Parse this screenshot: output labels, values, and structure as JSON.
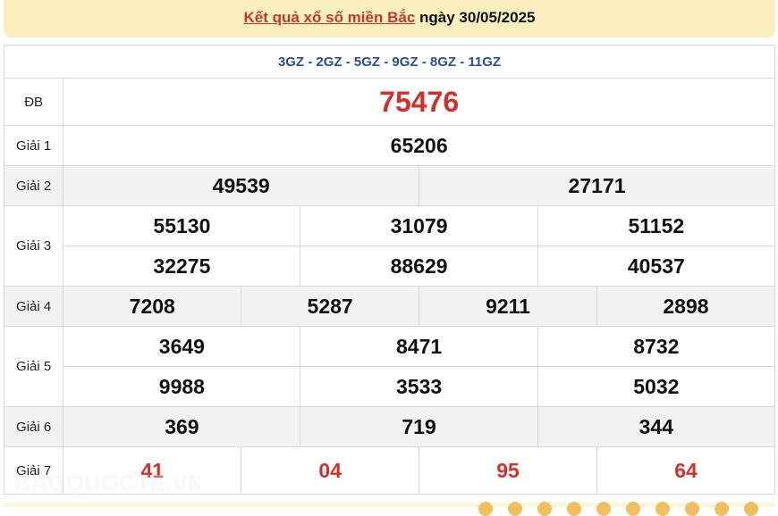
{
  "header": {
    "title_link": "Kết quả xổ số miền Bắc",
    "title_suffix": " ngày 30/05/2025"
  },
  "codes": "3GZ - 2GZ - 5GZ - 9GZ - 8GZ - 11GZ",
  "prizes": {
    "db": {
      "label": "ĐB",
      "values": [
        "75476"
      ]
    },
    "g1": {
      "label": "Giải 1",
      "values": [
        "65206"
      ]
    },
    "g2": {
      "label": "Giải 2",
      "values": [
        "49539",
        "27171"
      ]
    },
    "g3": {
      "label": "Giải 3",
      "values": [
        "55130",
        "31079",
        "51152",
        "32275",
        "88629",
        "40537"
      ]
    },
    "g4": {
      "label": "Giải 4",
      "values": [
        "7208",
        "5287",
        "9211",
        "2898"
      ]
    },
    "g5": {
      "label": "Giải 5",
      "values": [
        "3649",
        "8471",
        "8732",
        "9988",
        "3533",
        "5032"
      ]
    },
    "g6": {
      "label": "Giải 6",
      "values": [
        "369",
        "719",
        "344"
      ]
    },
    "g7": {
      "label": "Giải 7",
      "values": [
        "41",
        "04",
        "95",
        "64"
      ]
    }
  },
  "watermark": "BAOQUOCTE.VN",
  "colors": {
    "accent_red": "#d0312d",
    "code_blue": "#2a4f8a",
    "title_bg": "#fbefbf"
  }
}
